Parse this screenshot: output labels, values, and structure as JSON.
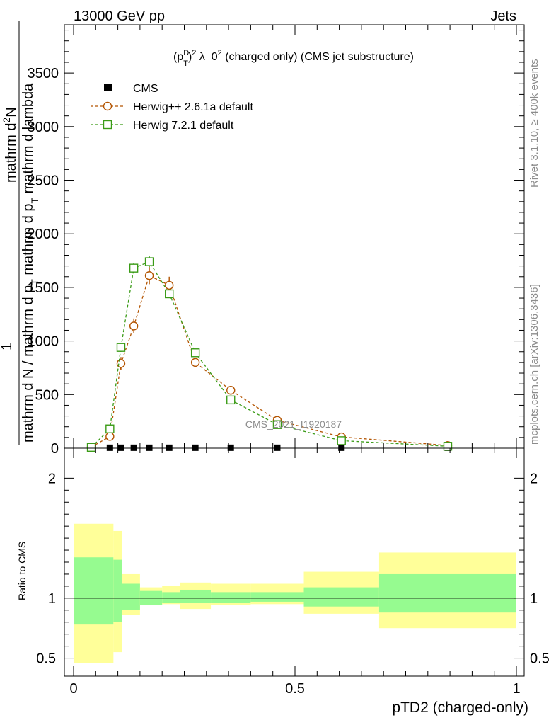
{
  "header": {
    "left": "13000 GeV pp",
    "right": "Jets"
  },
  "side_labels": {
    "rivet": "Rivet 3.1.10, ≥ 400k events",
    "mcplots": "mcplots.cern.ch [arXiv:1306.3436]"
  },
  "watermark": "CMS_2021_I1920187",
  "chart_data": {
    "type": "line",
    "title": "(p_T^D)^2 λ_0^2 (charged only) (CMS jet substructure)",
    "title_parts": {
      "a": "(p",
      "sup1": "D",
      "sub1": "T",
      "b": ")",
      "sup2": "2",
      "c": " λ_0",
      "sup3": "2",
      "d": " (charged only) (CMS jet substructure)"
    },
    "xlabel": "pTD2 (charged-only)",
    "ylabel_top_line1": "mathrm d",
    "ylabel_top_sup": "2",
    "ylabel_top_line2": "N",
    "ylabel_bottom_one": "1",
    "ylabel_bottom_line": "mathrm d N / mathrm d p",
    "ylabel_bottom_sub": "T",
    "ylabel_bottom_line2": " mathrm d p",
    "ylabel_bottom_sub2": "T",
    "ylabel_bottom_tail": " mathrm d lambda",
    "xlim": [
      0,
      1
    ],
    "ylim": [
      0,
      3950
    ],
    "x_ticks": [
      0,
      0.5,
      1
    ],
    "x_tick_labels": [
      "0",
      "0.5",
      "1"
    ],
    "y_ticks": [
      0,
      500,
      1000,
      1500,
      2000,
      2500,
      3000,
      3500
    ],
    "y_tick_labels": [
      "0",
      "500",
      "1000",
      "1500",
      "2000",
      "2500",
      "3000",
      "3500"
    ],
    "legend_position": "top-left",
    "series": [
      {
        "name": "CMS",
        "marker": "filled-square",
        "color": "#000000",
        "x": [
          0.04,
          0.082,
          0.107,
          0.136,
          0.171,
          0.216,
          0.275,
          0.355,
          0.46,
          0.605,
          0.845
        ],
        "values": [
          1.0,
          1.0,
          1.0,
          1.0,
          1.0,
          1.0,
          1.0,
          1.0,
          1.0,
          1.0,
          1.0
        ]
      },
      {
        "name": "Herwig++ 2.6.1a default",
        "marker": "open-circle",
        "color": "#b35400",
        "x": [
          0.04,
          0.082,
          0.107,
          0.136,
          0.171,
          0.216,
          0.275,
          0.355,
          0.46,
          0.605,
          0.845
        ],
        "values": [
          10,
          110,
          790,
          1140,
          1610,
          1520,
          800,
          540,
          260,
          105,
          25
        ],
        "errors": [
          5,
          20,
          60,
          70,
          80,
          80,
          40,
          25,
          15,
          10,
          5
        ]
      },
      {
        "name": "Herwig 7.2.1 default",
        "marker": "open-square",
        "color": "#3a9b16",
        "x": [
          0.04,
          0.082,
          0.107,
          0.136,
          0.171,
          0.216,
          0.275,
          0.355,
          0.46,
          0.605,
          0.845
        ],
        "values": [
          8,
          180,
          940,
          1680,
          1740,
          1440,
          890,
          450,
          220,
          70,
          18
        ],
        "errors": [
          4,
          20,
          40,
          50,
          50,
          40,
          30,
          20,
          10,
          8,
          4
        ]
      }
    ],
    "ratio": {
      "ylabel": "Ratio to CMS",
      "ylim": [
        0.35,
        2.25
      ],
      "y_ticks": [
        0.5,
        1,
        2
      ],
      "y_tick_labels": [
        "0.5",
        "1",
        "2"
      ],
      "bins": [
        0,
        0.09,
        0.11,
        0.15,
        0.2,
        0.24,
        0.31,
        0.4,
        0.52,
        0.69,
        1.0
      ],
      "band_inner_low": [
        0.78,
        0.8,
        0.9,
        0.94,
        0.96,
        0.96,
        0.96,
        0.97,
        0.93,
        0.88
      ],
      "band_inner_high": [
        1.34,
        1.32,
        1.12,
        1.06,
        1.05,
        1.07,
        1.05,
        1.05,
        1.09,
        1.2
      ],
      "band_outer_low": [
        0.46,
        0.55,
        0.86,
        0.94,
        0.95,
        0.91,
        0.94,
        0.95,
        0.87,
        0.75
      ],
      "band_outer_high": [
        1.62,
        1.56,
        1.2,
        1.09,
        1.1,
        1.13,
        1.12,
        1.12,
        1.22,
        1.38
      ],
      "colors": {
        "inner": "#96fb90",
        "outer": "#ffff99"
      }
    }
  }
}
